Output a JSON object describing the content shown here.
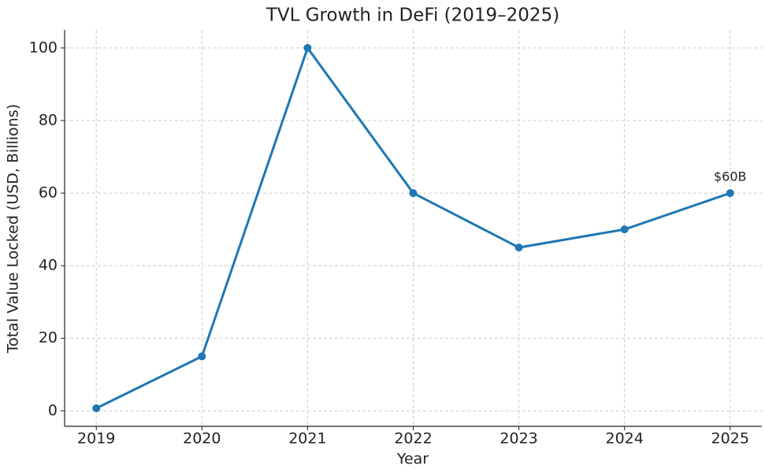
{
  "chart_data": {
    "type": "line",
    "title": "TVL Growth in DeFi (2019–2025)",
    "x_label": "Year",
    "y_label": "Total Value Locked (USD, Billions)",
    "x": [
      2019,
      2020,
      2021,
      2022,
      2023,
      2024,
      2025
    ],
    "series": [
      {
        "name": "TVL",
        "color": "#1f77b4",
        "values": [
          0.7,
          15,
          100,
          60,
          45,
          50,
          60
        ]
      }
    ],
    "annotation": "$60B",
    "xlim": [
      2018.7,
      2025.3
    ],
    "xticks": [
      2019,
      2020,
      2021,
      2022,
      2023,
      2024,
      2025
    ],
    "ylim": [
      -4.27,
      104.97
    ],
    "yticks": [
      0,
      20,
      40,
      60,
      80,
      100
    ],
    "grid": true
  }
}
